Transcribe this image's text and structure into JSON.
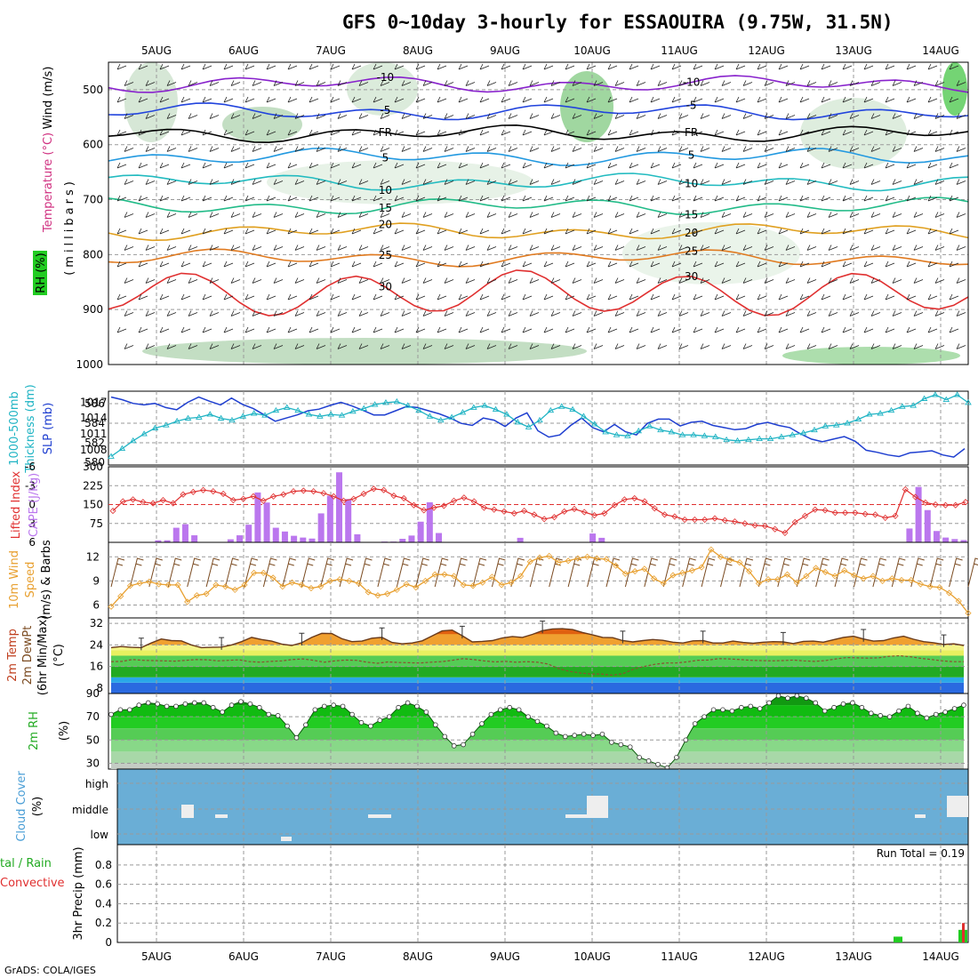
{
  "title": "GFS 0~10day 3-hourly for ESSAOUIRA (9.75W, 31.5N)",
  "credit": "GrADS: COLA/IGES",
  "dates": [
    "5AUG",
    "6AUG",
    "7AUG",
    "8AUG",
    "9AUG",
    "10AUG",
    "11AUG",
    "12AUG",
    "13AUG",
    "14AUG"
  ],
  "colors": {
    "slp": "#1f3fd0",
    "thickness": "#20b4c4",
    "lifted": "#e03030",
    "cape": "#bb77ee",
    "wind10m": "#e8a030",
    "barb": "#7a4a20",
    "rh_green": "#22cc22",
    "cloud": "#6aaed6",
    "cloud_patch": "#eeeeee",
    "precip_total": "#22cc22",
    "precip_conv": "#e03030"
  },
  "chart_data": [
    {
      "panel": "upper-air",
      "type": "heatmap",
      "ylabel": "(millibars)",
      "ylabel_parts": [
        "Wind (m/s)",
        "Temperature (°C)",
        "RH (%)"
      ],
      "y_ticks": [
        "500",
        "600",
        "700",
        "800",
        "900",
        "1000"
      ],
      "ylim": [
        1000,
        450
      ],
      "isotherms": [
        {
          "label": "-10",
          "p": 490
        },
        {
          "label": "-5",
          "p": 540
        },
        {
          "label": "FR",
          "p": 580
        },
        {
          "label": "5",
          "p": 622
        },
        {
          "label": "10",
          "p": 668
        },
        {
          "label": "15",
          "p": 712
        },
        {
          "label": "20",
          "p": 758
        },
        {
          "label": "25",
          "p": 806
        },
        {
          "label": "30",
          "p": 870
        }
      ]
    },
    {
      "panel": "slp-thickness",
      "type": "line",
      "ylabel_left": "1000-500mb Thickness (dm)",
      "ylabel_right": "SLP (mb)",
      "left_ticks": [
        "580",
        "582",
        "584",
        "586"
      ],
      "right_ticks": [
        "1008",
        "1011",
        "1014",
        "1017"
      ],
      "series": [
        {
          "name": "SLP",
          "values": [
            1018,
            1017.5,
            1016.8,
            1016.5,
            1016.8,
            1016,
            1015.6,
            1017,
            1018,
            1017.2,
            1016.5,
            1017.8,
            1016.6,
            1015.8,
            1014.6,
            1013.4,
            1014,
            1014.6,
            1015.4,
            1015.7,
            1016.4,
            1017,
            1016.3,
            1015.5,
            1014.6,
            1014.6,
            1015.4,
            1016.2,
            1016,
            1015.4,
            1014.8,
            1014,
            1013,
            1012.6,
            1014,
            1013.6,
            1012.4,
            1014,
            1015,
            1011.6,
            1010.4,
            1010.8,
            1012.6,
            1014,
            1012.2,
            1011.4,
            1012.8,
            1011.4,
            1010.8,
            1013,
            1013.8,
            1013.8,
            1012.5,
            1013.2,
            1013.4,
            1012.6,
            1012.2,
            1011.8,
            1012,
            1012.8,
            1013.2,
            1012.6,
            1012.2,
            1011,
            1010,
            1009.5,
            1010,
            1010.5,
            1009.6,
            1007.9,
            1007.5,
            1007,
            1006.7,
            1007.4,
            1007.6,
            1007.8,
            1007,
            1006.6,
            1008.2
          ]
        },
        {
          "name": "Thickness",
          "values": [
            580.6,
            581.4,
            582.2,
            582.9,
            583.5,
            583.8,
            584.2,
            584.5,
            584.6,
            584.9,
            584.5,
            584.3,
            584.7,
            585,
            584.8,
            585.3,
            585.6,
            585.3,
            584.9,
            584.7,
            584.9,
            584.8,
            585.2,
            585.5,
            585.9,
            586.1,
            586.2,
            585.8,
            585.3,
            584.7,
            584.3,
            584.6,
            585.1,
            585.6,
            585.8,
            585.4,
            584.9,
            584.1,
            583.6,
            584.3,
            585.3,
            585.7,
            585.4,
            584.7,
            583.9,
            583.1,
            582.8,
            582.7,
            583.2,
            583.7,
            583.3,
            583.1,
            582.8,
            582.8,
            582.7,
            582.6,
            582.3,
            582.2,
            582.3,
            582.4,
            582.4,
            582.6,
            582.8,
            583,
            583.3,
            583.7,
            583.8,
            584,
            584.4,
            584.9,
            585,
            585.3,
            585.7,
            585.8,
            586.5,
            586.9,
            586.4,
            586.9,
            586.1
          ]
        }
      ]
    },
    {
      "panel": "lifted-cape",
      "type": "bar",
      "ylabel_left": "Lifted Index",
      "ylabel_right": "CAPE (J/kg)",
      "left_ticks": [
        "6",
        "3",
        "0",
        "-3",
        "-6"
      ],
      "right_ticks": [
        "75",
        "150",
        "225",
        "300"
      ],
      "series": [
        {
          "name": "Lifted Index",
          "values": [
            1,
            -0.5,
            -0.8,
            -0.4,
            -0.2,
            -0.7,
            -0.2,
            -1.6,
            -2,
            -2.3,
            -2.1,
            -1.7,
            -0.7,
            -0.9,
            -1.3,
            -0.6,
            -1.3,
            -1.6,
            -2.1,
            -2.2,
            -2.1,
            -1.8,
            -1.3,
            -0.6,
            -0.9,
            -1.7,
            -2.5,
            -2.3,
            -1.4,
            -1,
            0.1,
            0.9,
            0.5,
            0.2,
            -0.6,
            -1.1,
            -0.5,
            0.5,
            0.8,
            1.1,
            1.4,
            1,
            1.6,
            2.3,
            2,
            1.1,
            0.7,
            1.2,
            1.7,
            1.4,
            0.1,
            -0.8,
            -1,
            -0.5,
            0.6,
            1.6,
            1.9,
            2.4,
            2.4,
            2.4,
            2.2,
            2.5,
            2.7,
            3,
            3.3,
            3.4,
            3.9,
            4.5,
            2.8,
            1.8,
            0.8,
            0.9,
            1.3,
            1.3,
            1.3,
            1.5,
            1.6,
            2.1,
            1.8,
            -2.4,
            -1.2,
            -0.3,
            0,
            0.1,
            0.1,
            -0.4
          ]
        },
        {
          "name": "CAPE",
          "values": [
            0,
            0,
            0,
            0,
            0,
            8,
            8,
            58,
            72,
            28,
            0,
            0,
            0,
            12,
            28,
            70,
            198,
            158,
            58,
            43,
            26,
            19,
            15,
            115,
            185,
            278,
            172,
            32,
            0,
            0,
            3,
            3,
            14,
            27,
            82,
            159,
            37,
            0,
            0,
            0,
            0,
            0,
            0,
            0,
            0,
            18,
            0,
            0,
            0,
            0,
            0,
            0,
            0,
            35,
            18,
            0,
            0,
            0,
            0,
            0,
            0,
            0,
            0,
            0,
            0,
            0,
            0,
            0,
            0,
            0,
            0,
            0,
            0,
            0,
            0,
            0,
            0,
            0,
            0,
            0,
            0,
            0,
            0,
            0,
            0,
            0,
            0,
            0,
            55,
            220,
            128,
            45,
            19,
            13,
            9
          ]
        }
      ]
    },
    {
      "panel": "wind10m",
      "type": "line",
      "ylabel": "10m Wind Speed (m/s) & Barbs",
      "y_ticks": [
        "6",
        "9",
        "12"
      ],
      "series": [
        {
          "name": "10m Wind Speed",
          "values": [
            5.8,
            7.1,
            8.4,
            8.7,
            8.9,
            8.6,
            8.5,
            8.5,
            6.4,
            7.2,
            7.4,
            8.5,
            8.3,
            7.9,
            8.5,
            10,
            10,
            9.4,
            8.3,
            8.8,
            8.5,
            8.1,
            8.3,
            9,
            9.2,
            9,
            8.7,
            7.6,
            7.2,
            7.4,
            7.9,
            8.6,
            8.2,
            9,
            9.8,
            9.8,
            9.6,
            8.5,
            8.4,
            8.8,
            9.5,
            8.5,
            8.8,
            9.6,
            11.4,
            11.9,
            12.1,
            11.3,
            11.5,
            11.8,
            12,
            11.8,
            11.7,
            10.9,
            9.9,
            10.2,
            10.5,
            9.3,
            8.7,
            9.7,
            10,
            10.3,
            10.7,
            12.9,
            12,
            11.6,
            11.3,
            10.2,
            8.7,
            9.2,
            9.2,
            9.8,
            8.8,
            9.6,
            10.6,
            10.1,
            9.6,
            10.3,
            9.7,
            9.3,
            9.6,
            9,
            9.3,
            9.1,
            9.1,
            8.6,
            8.3,
            8.2,
            7.5,
            6.5,
            5
          ]
        }
      ]
    },
    {
      "panel": "temp2m",
      "type": "area",
      "ylabel": "2m Temp 2m DewPt (6hr Min/Max) (°C)",
      "y_ticks": [
        "8",
        "16",
        "24",
        "32"
      ],
      "series": [
        {
          "name": "2m Temp",
          "values": [
            23,
            23.4,
            23.1,
            23,
            24.7,
            26.2,
            25.6,
            25.5,
            24,
            23,
            23.1,
            23.2,
            24,
            25.2,
            26.8,
            26,
            25.4,
            24.3,
            23.8,
            24.8,
            26.8,
            28.3,
            28.2,
            26.3,
            25.2,
            25.4,
            26.5,
            26.8,
            24.9,
            24.4,
            24.7,
            25.5,
            27.3,
            29.2,
            29.5,
            27.4,
            25.1,
            25.3,
            25.6,
            26.6,
            27.1,
            26.8,
            27.9,
            29.3,
            29.9,
            30,
            29.7,
            28.6,
            27.7,
            26.8,
            26.7,
            25.6,
            25.1,
            25.6,
            26,
            25.7,
            25,
            24.7,
            25.5,
            25.6,
            24.7,
            24.7,
            25.4,
            24.9,
            24.6,
            25,
            25.2,
            25.1,
            24.5,
            25.3,
            25.4,
            25,
            25.9,
            26.8,
            27.2,
            26.2,
            25.4,
            25.6,
            26.6,
            27.2,
            26.1,
            25.2,
            24.8,
            24.2,
            24.4,
            23.8
          ]
        },
        {
          "name": "2m DewPt",
          "values": [
            17.8,
            17.9,
            18.6,
            18.3,
            18.2,
            18.1,
            18,
            18.3,
            18.6,
            18.5,
            18.1,
            18.3,
            18.5,
            17.8,
            17.6,
            17.9,
            18.1,
            18.6,
            18.8,
            18.3,
            17.6,
            18.1,
            18.4,
            18.3,
            17.6,
            17.2,
            17.7,
            17.5,
            17.4,
            17.3,
            17.6,
            17.8,
            18.3,
            18.9,
            18.6,
            18.1,
            17.7,
            17.9,
            17.6,
            17.8,
            17.6,
            16.9,
            15.2,
            14.2,
            13.6,
            13.2,
            13.2,
            12.8,
            13.3,
            15,
            16,
            16.8,
            17.3,
            17.3,
            17.7,
            18.3,
            18.4,
            18.9,
            18.8,
            18.6,
            18.3,
            18.2,
            18.1,
            18.2,
            18.4,
            18.1,
            17.9,
            18.2,
            18.8,
            19.3,
            19.2,
            19.1,
            19.2,
            19.8,
            20,
            19.6,
            19,
            18.6,
            18.1,
            17.8,
            17.8
          ]
        }
      ]
    },
    {
      "panel": "rh2m",
      "type": "area",
      "ylabel": "2m RH (%)",
      "y_ticks": [
        "30",
        "50",
        "70",
        "90"
      ],
      "ylim": [
        25,
        90
      ],
      "series": [
        {
          "name": "2m RH",
          "values": [
            72,
            76,
            76,
            80,
            82,
            81,
            79,
            79,
            81,
            82,
            82,
            78,
            74,
            80,
            83,
            81,
            78,
            72,
            71,
            62,
            52,
            63,
            76,
            79,
            80,
            79,
            72,
            65,
            62,
            67,
            70,
            78,
            82,
            79,
            74,
            63,
            53,
            45,
            46,
            55,
            64,
            72,
            76,
            78,
            76,
            70,
            66,
            62,
            56,
            53,
            54,
            55,
            54,
            55,
            48,
            46,
            44,
            35,
            32,
            29,
            26,
            35,
            50,
            64,
            70,
            76,
            76,
            75,
            78,
            79,
            77,
            82,
            88,
            86,
            88,
            86,
            82,
            75,
            78,
            81,
            82,
            78,
            73,
            71,
            70,
            75,
            79,
            73,
            69,
            72,
            74,
            77,
            80
          ]
        }
      ]
    },
    {
      "panel": "cloud",
      "type": "heatmap",
      "ylabel": "Cloud Cover (%)",
      "y_ticks": [
        "high",
        "middle",
        "low"
      ]
    },
    {
      "panel": "precip",
      "type": "bar",
      "ylabel": "3hr Precip (mm)",
      "ylabel_parts": [
        "Total / Rain",
        "Convective"
      ],
      "annotation": "Run Total = 0.19",
      "y_ticks": [
        "0",
        "0.2",
        "0.4",
        "0.6",
        "0.8"
      ],
      "ylim": [
        0,
        1.0
      ],
      "series": [
        {
          "name": "Total",
          "values": [
            0.06,
            0.13
          ]
        },
        {
          "name": "Convective",
          "values": [
            0,
            0.2
          ]
        }
      ]
    }
  ]
}
